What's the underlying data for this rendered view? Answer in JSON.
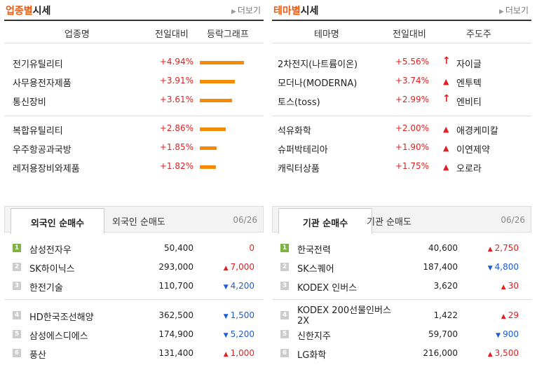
{
  "sector": {
    "title_accent": "업종별",
    "title_rest": "시세",
    "more": "더보기",
    "headers": [
      "업종명",
      "전일대비",
      "등락그래프"
    ],
    "rows": [
      {
        "name": "전기유틸리티",
        "pct": "+4.94%",
        "value": 4.94
      },
      {
        "name": "사무용전자제품",
        "pct": "+3.91%",
        "value": 3.91
      },
      {
        "name": "통신장비",
        "pct": "+3.61%",
        "value": 3.61
      },
      {
        "name": "복합유틸리티",
        "pct": "+2.86%",
        "value": 2.86
      },
      {
        "name": "우주항공과국방",
        "pct": "+1.85%",
        "value": 1.85
      },
      {
        "name": "레저용장비와제품",
        "pct": "+1.82%",
        "value": 1.82
      }
    ]
  },
  "theme": {
    "title_accent": "테마별",
    "title_rest": "시세",
    "more": "더보기",
    "headers": [
      "테마명",
      "전일대비",
      "주도주"
    ],
    "rows": [
      {
        "name": "2차전지(나트륨이온)",
        "pct": "+5.56%",
        "leader": "자이글",
        "leader_icon": "up-arrow"
      },
      {
        "name": "모더나(MODERNA)",
        "pct": "+3.74%",
        "leader": "엔투텍",
        "leader_icon": "up-triangle"
      },
      {
        "name": "토스(toss)",
        "pct": "+2.99%",
        "leader": "엔비티",
        "leader_icon": "up-arrow"
      },
      {
        "name": "석유화학",
        "pct": "+2.00%",
        "leader": "애경케미칼",
        "leader_icon": "up-triangle"
      },
      {
        "name": "슈퍼박테리아",
        "pct": "+1.90%",
        "leader": "이연제약",
        "leader_icon": "up-triangle"
      },
      {
        "name": "캐릭터상품",
        "pct": "+1.75%",
        "leader": "오로라",
        "leader_icon": "up-triangle"
      }
    ]
  },
  "foreign": {
    "tab_active": "외국인 순매수",
    "tab_inactive": "외국인 순매도",
    "date": "06/26",
    "rows": [
      {
        "rank": "1",
        "name": "삼성전자우",
        "price": "50,400",
        "change": "0",
        "dir": "flat"
      },
      {
        "rank": "2",
        "name": "SK하이닉스",
        "price": "293,000",
        "change": "7,000",
        "dir": "up"
      },
      {
        "rank": "3",
        "name": "한전기술",
        "price": "110,700",
        "change": "4,200",
        "dir": "down"
      },
      {
        "rank": "4",
        "name": "HD한국조선해양",
        "price": "362,500",
        "change": "1,500",
        "dir": "down"
      },
      {
        "rank": "5",
        "name": "삼성에스디에스",
        "price": "174,900",
        "change": "5,200",
        "dir": "down"
      },
      {
        "rank": "6",
        "name": "풍산",
        "price": "131,400",
        "change": "1,000",
        "dir": "up"
      }
    ]
  },
  "institution": {
    "tab_active": "기관 순매수",
    "tab_inactive": "기관 순매도",
    "date": "06/26",
    "rows": [
      {
        "rank": "1",
        "name": "한국전력",
        "price": "40,600",
        "change": "2,750",
        "dir": "up"
      },
      {
        "rank": "2",
        "name": "SK스퀘어",
        "price": "187,400",
        "change": "4,800",
        "dir": "down"
      },
      {
        "rank": "3",
        "name": "KODEX 인버스",
        "price": "3,620",
        "change": "30",
        "dir": "up"
      },
      {
        "rank": "4",
        "name": "KODEX 200선물인버스2X",
        "price": "1,422",
        "change": "29",
        "dir": "up"
      },
      {
        "rank": "5",
        "name": "신한지주",
        "price": "59,700",
        "change": "900",
        "dir": "down"
      },
      {
        "rank": "6",
        "name": "LG화학",
        "price": "216,000",
        "change": "3,500",
        "dir": "up"
      }
    ]
  },
  "colors": {
    "up": "#e02020",
    "down": "#1a5bd6",
    "bar": "#f58a07",
    "accent": "#e85a10",
    "rank_first": "#7cb342"
  }
}
